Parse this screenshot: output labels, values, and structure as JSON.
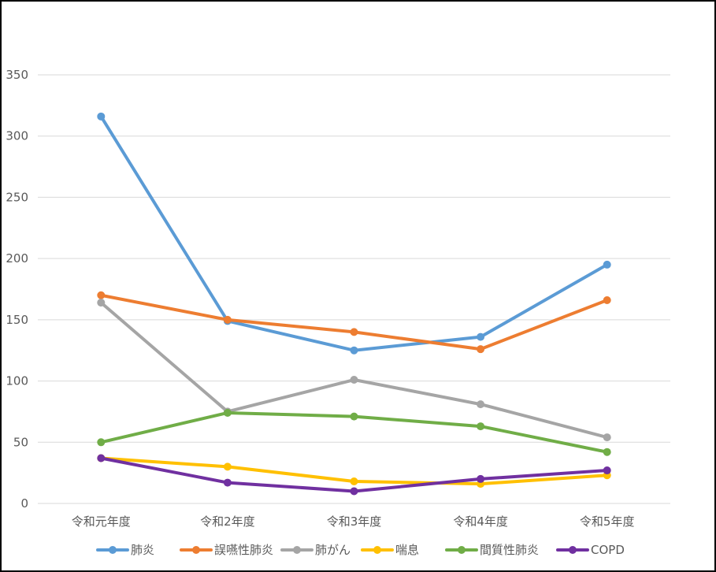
{
  "chart_data": {
    "type": "line",
    "title": "",
    "xlabel": "",
    "ylabel": "",
    "categories": [
      "令和元年度",
      "令和2年度",
      "令和3年度",
      "令和4年度",
      "令和5年度"
    ],
    "ylim": [
      0,
      350
    ],
    "yticks": [
      0,
      50,
      100,
      150,
      200,
      250,
      300,
      350
    ],
    "grid": true,
    "legend_position": "bottom",
    "series": [
      {
        "name": "肺炎",
        "color": "#5B9BD5",
        "values": [
          316,
          149,
          125,
          136,
          195
        ]
      },
      {
        "name": "誤嚥性肺炎",
        "color": "#ED7D31",
        "values": [
          170,
          150,
          140,
          126,
          166
        ]
      },
      {
        "name": "肺がん",
        "color": "#A5A5A5",
        "values": [
          164,
          75,
          101,
          81,
          54
        ]
      },
      {
        "name": "喘息",
        "color": "#FFC000",
        "values": [
          37,
          30,
          18,
          16,
          23
        ]
      },
      {
        "name": "間質性肺炎",
        "color": "#70AD47",
        "values": [
          50,
          74,
          71,
          63,
          42
        ]
      },
      {
        "name": "COPD",
        "color": "#7030A0",
        "values": [
          37,
          17,
          10,
          20,
          27
        ]
      }
    ]
  }
}
